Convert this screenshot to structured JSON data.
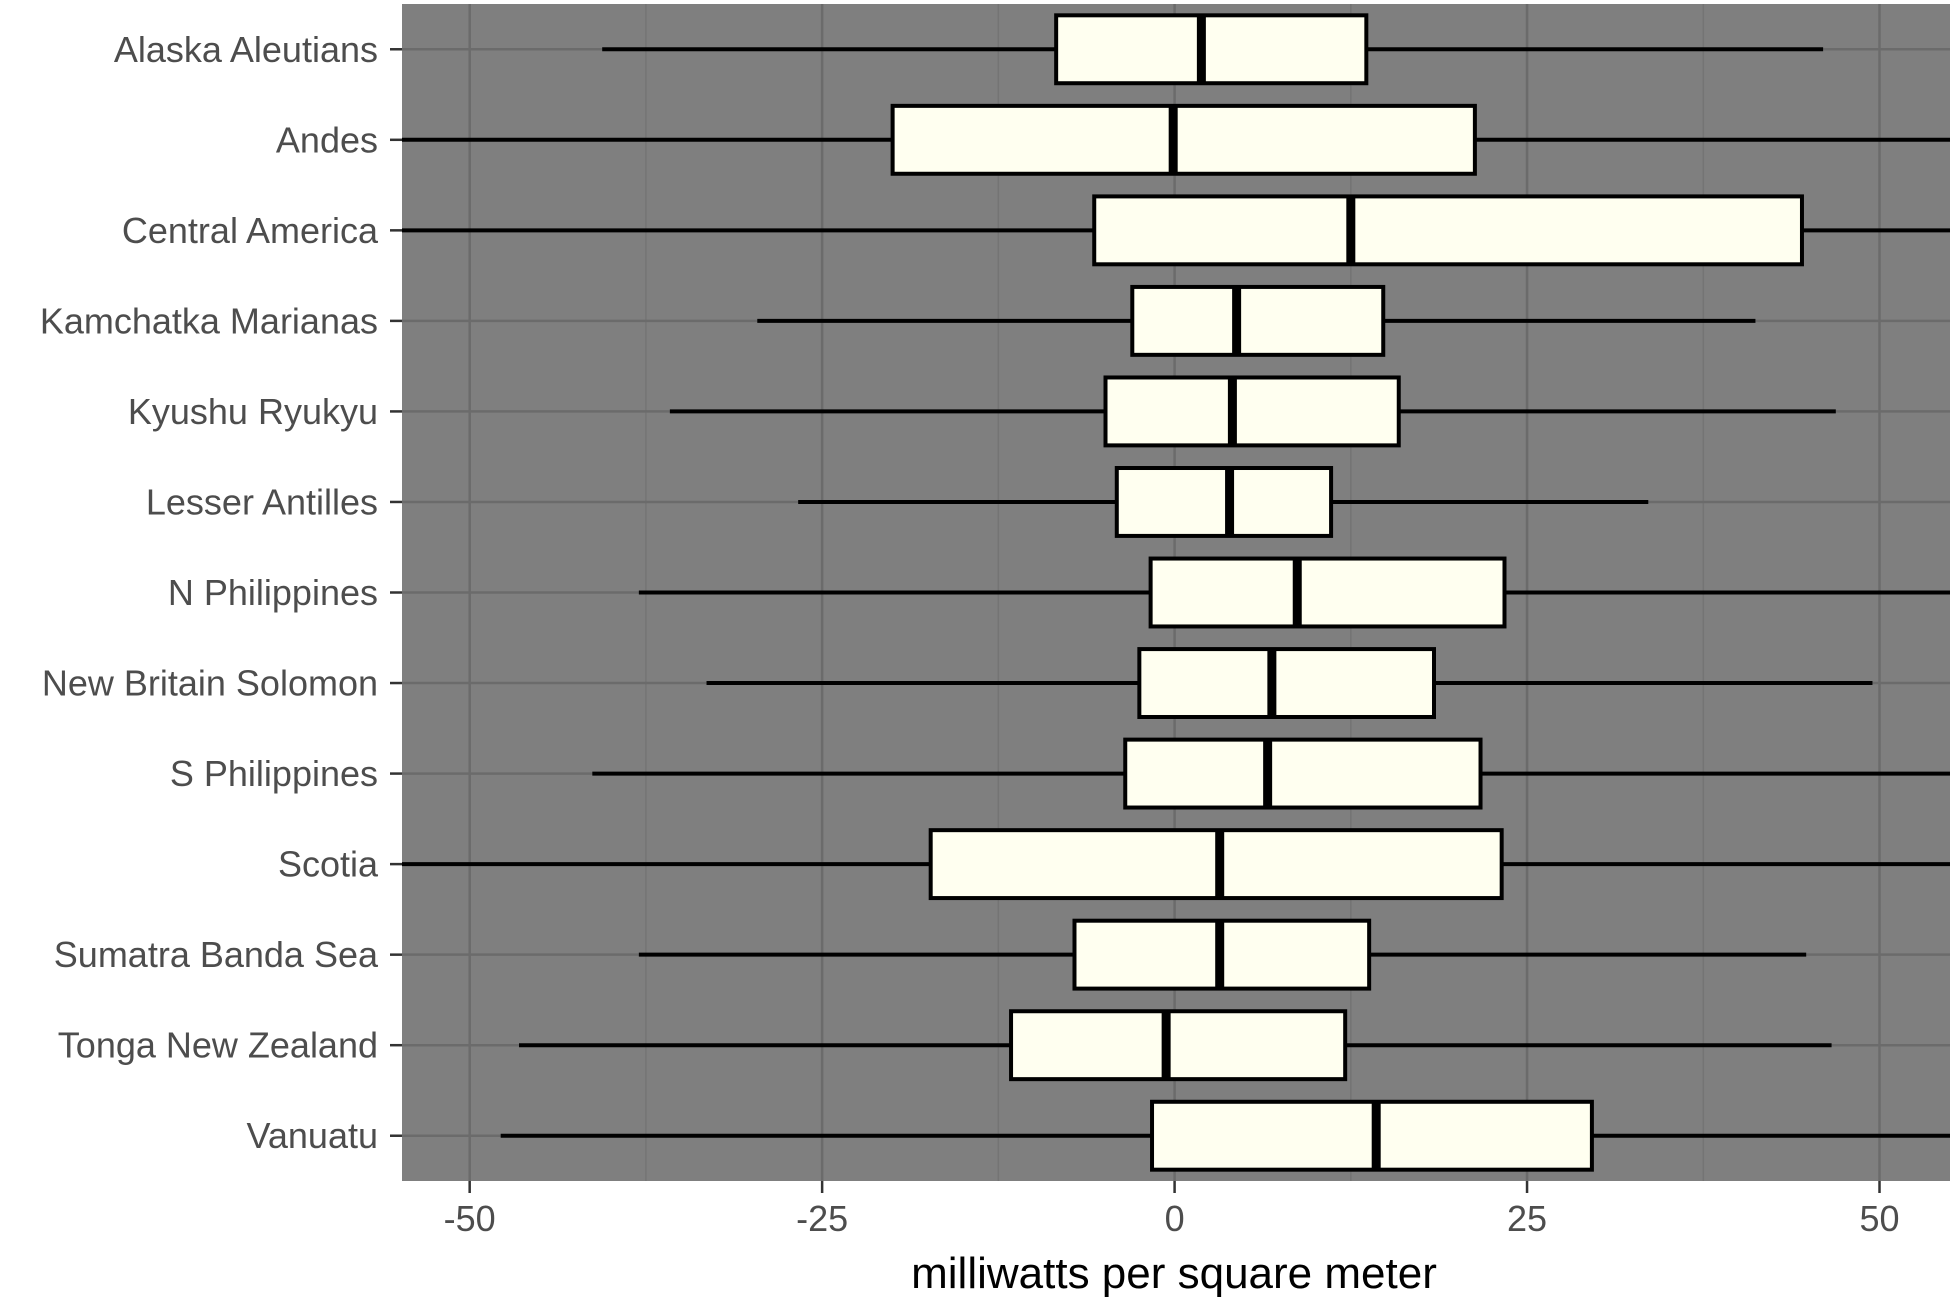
{
  "chart_data": {
    "type": "boxplot",
    "orientation": "horizontal",
    "xlabel": "milliwatts per square meter",
    "ylabel": "",
    "xlim": [
      -54.8,
      55
    ],
    "xticks": [
      -50,
      -25,
      0,
      25,
      50
    ],
    "xtick_labels": [
      "-50",
      "-25",
      "0",
      "25",
      "50"
    ],
    "grid": true,
    "colors": {
      "panel_background": "#7f7f7f",
      "grid_major": "#6b6b6b",
      "grid_minor": "#747474",
      "box_fill": "#fffff0",
      "box_stroke": "#000000",
      "tick_label": "#4d4d4d"
    },
    "categories": [
      "Alaska Aleutians",
      "Andes",
      "Central America",
      "Kamchatka Marianas",
      "Kyushu Ryukyu",
      "Lesser Antilles",
      "N Philippines",
      "New Britain Solomon",
      "S Philippines",
      "Scotia",
      "Sumatra Banda Sea",
      "Tonga New Zealand",
      "Vanuatu"
    ],
    "boxes": [
      {
        "category": "Alaska Aleutians",
        "whisker_low": -40.6,
        "q1": -8.4,
        "median": 1.9,
        "q3": 13.6,
        "whisker_high": 46.0
      },
      {
        "category": "Andes",
        "whisker_low": -54.8,
        "q1": -20.0,
        "median": -0.1,
        "q3": 21.3,
        "whisker_high": 55.0
      },
      {
        "category": "Central America",
        "whisker_low": -54.8,
        "q1": -5.7,
        "median": 12.5,
        "q3": 44.5,
        "whisker_high": 55.0
      },
      {
        "category": "Kamchatka Marianas",
        "whisker_low": -29.6,
        "q1": -3.0,
        "median": 4.4,
        "q3": 14.8,
        "whisker_high": 41.2
      },
      {
        "category": "Kyushu Ryukyu",
        "whisker_low": -35.8,
        "q1": -4.9,
        "median": 4.1,
        "q3": 15.9,
        "whisker_high": 46.9
      },
      {
        "category": "Lesser Antilles",
        "whisker_low": -26.7,
        "q1": -4.1,
        "median": 3.9,
        "q3": 11.1,
        "whisker_high": 33.6
      },
      {
        "category": "N Philippines",
        "whisker_low": -38.0,
        "q1": -1.7,
        "median": 8.7,
        "q3": 23.4,
        "whisker_high": 55.0
      },
      {
        "category": "New Britain Solomon",
        "whisker_low": -33.2,
        "q1": -2.5,
        "median": 6.9,
        "q3": 18.4,
        "whisker_high": 49.5
      },
      {
        "category": "S Philippines",
        "whisker_low": -41.3,
        "q1": -3.5,
        "median": 6.6,
        "q3": 21.7,
        "whisker_high": 55.0
      },
      {
        "category": "Scotia",
        "whisker_low": -54.8,
        "q1": -17.3,
        "median": 3.2,
        "q3": 23.2,
        "whisker_high": 55.0
      },
      {
        "category": "Sumatra Banda Sea",
        "whisker_low": -38.0,
        "q1": -7.1,
        "median": 3.2,
        "q3": 13.8,
        "whisker_high": 44.8
      },
      {
        "category": "Tonga New Zealand",
        "whisker_low": -46.5,
        "q1": -11.6,
        "median": -0.6,
        "q3": 12.1,
        "whisker_high": 46.6
      },
      {
        "category": "Vanuatu",
        "whisker_low": -47.8,
        "q1": -1.6,
        "median": 14.3,
        "q3": 29.6,
        "whisker_high": 55.0
      }
    ]
  }
}
